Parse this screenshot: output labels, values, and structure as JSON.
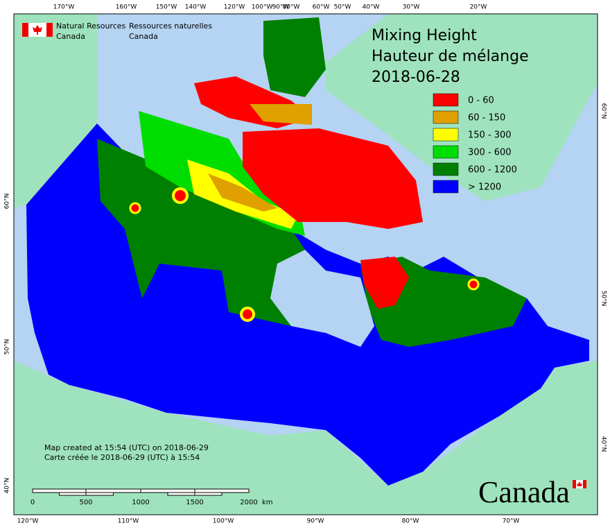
{
  "agency": {
    "en": [
      "Natural Resources",
      "Canada"
    ],
    "fr": [
      "Ressources naturelles",
      "Canada"
    ]
  },
  "title": [
    "Mixing Height",
    "Hauteur de mélange"
  ],
  "date": "2018-06-28",
  "legend": [
    {
      "label": "0 - 60",
      "color": "#ff0000"
    },
    {
      "label": "60 - 150",
      "color": "#e0a000"
    },
    {
      "label": "150 - 300",
      "color": "#ffff00"
    },
    {
      "label": "300 - 600",
      "color": "#00dd00"
    },
    {
      "label": "600 - 1200",
      "color": "#008000"
    },
    {
      "label": "> 1200",
      "color": "#0000ff"
    }
  ],
  "credits": [
    "Map created at 15:54 (UTC) on 2018-06-29",
    "Carte créée le 2018-06-29 (UTC) à 15:54"
  ],
  "scale_bar": {
    "labels": [
      "0",
      "500",
      "1000",
      "1500",
      "2000"
    ],
    "unit": "km"
  },
  "graticule": {
    "top": [
      "170°W",
      "160°W",
      "150°W",
      "140°W",
      "120°W",
      "100°W",
      "90°W",
      "80°W",
      "60°W",
      "50°W",
      "40°W",
      "30°W",
      "20°W"
    ],
    "bottom": [
      "120°W",
      "110°W",
      "100°W",
      "90°W",
      "80°W",
      "70°W"
    ],
    "left": [
      "60°N",
      "50°N",
      "40°N"
    ],
    "right": [
      "60°N",
      "50°N",
      "40°N"
    ]
  },
  "wordmark": "Canada"
}
